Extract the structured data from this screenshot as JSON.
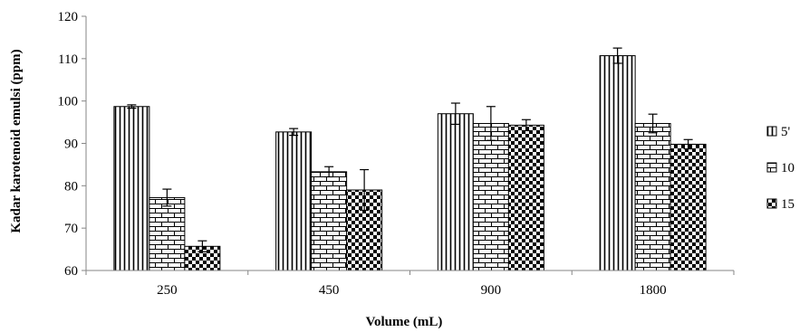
{
  "chart_data": {
    "type": "bar",
    "title": "",
    "xlabel": "Volume  (mL)",
    "ylabel": "Kadar karotenoid emulsi (ppm)",
    "ylim": [
      60,
      120
    ],
    "yticks": [
      60,
      70,
      80,
      90,
      100,
      110,
      120
    ],
    "categories": [
      "250",
      "450",
      "900",
      "1800"
    ],
    "grid": false,
    "legend_position": "right",
    "series": [
      {
        "name": "5'",
        "pattern": "vertical-stripes",
        "values": [
          98.7,
          92.7,
          97.0,
          110.7
        ],
        "errors": [
          0.4,
          0.8,
          2.5,
          1.8
        ]
      },
      {
        "name": "10",
        "pattern": "brick",
        "values": [
          77.2,
          83.3,
          94.7,
          94.7
        ],
        "errors": [
          2.0,
          1.2,
          4.0,
          2.2
        ]
      },
      {
        "name": "15",
        "pattern": "checker",
        "values": [
          65.7,
          79.0,
          94.3,
          89.8
        ],
        "errors": [
          1.3,
          4.8,
          1.3,
          1.1
        ]
      }
    ]
  }
}
